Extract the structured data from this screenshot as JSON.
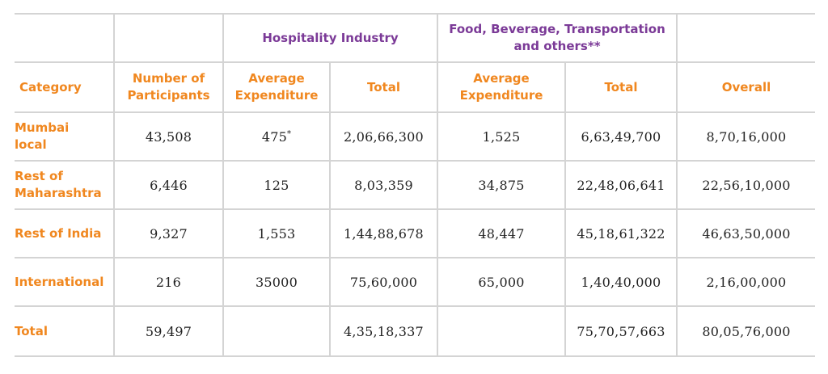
{
  "group_headers": {
    "hospitality": "Hospitality Industry",
    "food_line1": "Food, Beverage, Transportation",
    "food_line2": "and others**"
  },
  "columns": {
    "category": "Category",
    "participants_line1": "Number of",
    "participants_line2": "Participants",
    "hosp_avg_line1": "Average",
    "hosp_avg_line2": "Expenditure",
    "hosp_total": "Total",
    "food_avg_line1": "Average",
    "food_avg_line2": "Expenditure",
    "food_total": "Total",
    "overall": "Overall"
  },
  "rows": [
    {
      "category_line1": "Mumbai",
      "category_line2": "local",
      "participants": "43,508",
      "hosp_avg": "475",
      "hosp_avg_note": "*",
      "hosp_total": "2,06,66,300",
      "food_avg": "1,525",
      "food_total": "6,63,49,700",
      "overall": "8,70,16,000"
    },
    {
      "category_line1": "Rest of",
      "category_line2": "Maharashtra",
      "participants": "6,446",
      "hosp_avg": "125",
      "hosp_avg_note": "",
      "hosp_total": "8,03,359",
      "food_avg": "34,875",
      "food_total": "22,48,06,641",
      "overall": "22,56,10,000"
    },
    {
      "category_line1": "Rest of India",
      "category_line2": "",
      "participants": "9,327",
      "hosp_avg": "1,553",
      "hosp_avg_note": "",
      "hosp_total": "1,44,88,678",
      "food_avg": "48,447",
      "food_total": "45,18,61,322",
      "overall": "46,63,50,000"
    },
    {
      "category_line1": "International",
      "category_line2": "",
      "participants": "216",
      "hosp_avg": "35000",
      "hosp_avg_note": "",
      "hosp_total": "75,60,000",
      "food_avg": "65,000",
      "food_total": "1,40,40,000",
      "overall": "2,16,00,000"
    },
    {
      "category_line1": "Total",
      "category_line2": "",
      "participants": "59,497",
      "hosp_avg": "",
      "hosp_avg_note": "",
      "hosp_total": "4,35,18,337",
      "food_avg": "",
      "food_total": "75,70,57,663",
      "overall": "80,05,76,000"
    }
  ],
  "colors": {
    "group_header": "#7b3a97",
    "column_header": "#f0871f",
    "value_text": "#222222",
    "rule": "#d4d4d4"
  }
}
